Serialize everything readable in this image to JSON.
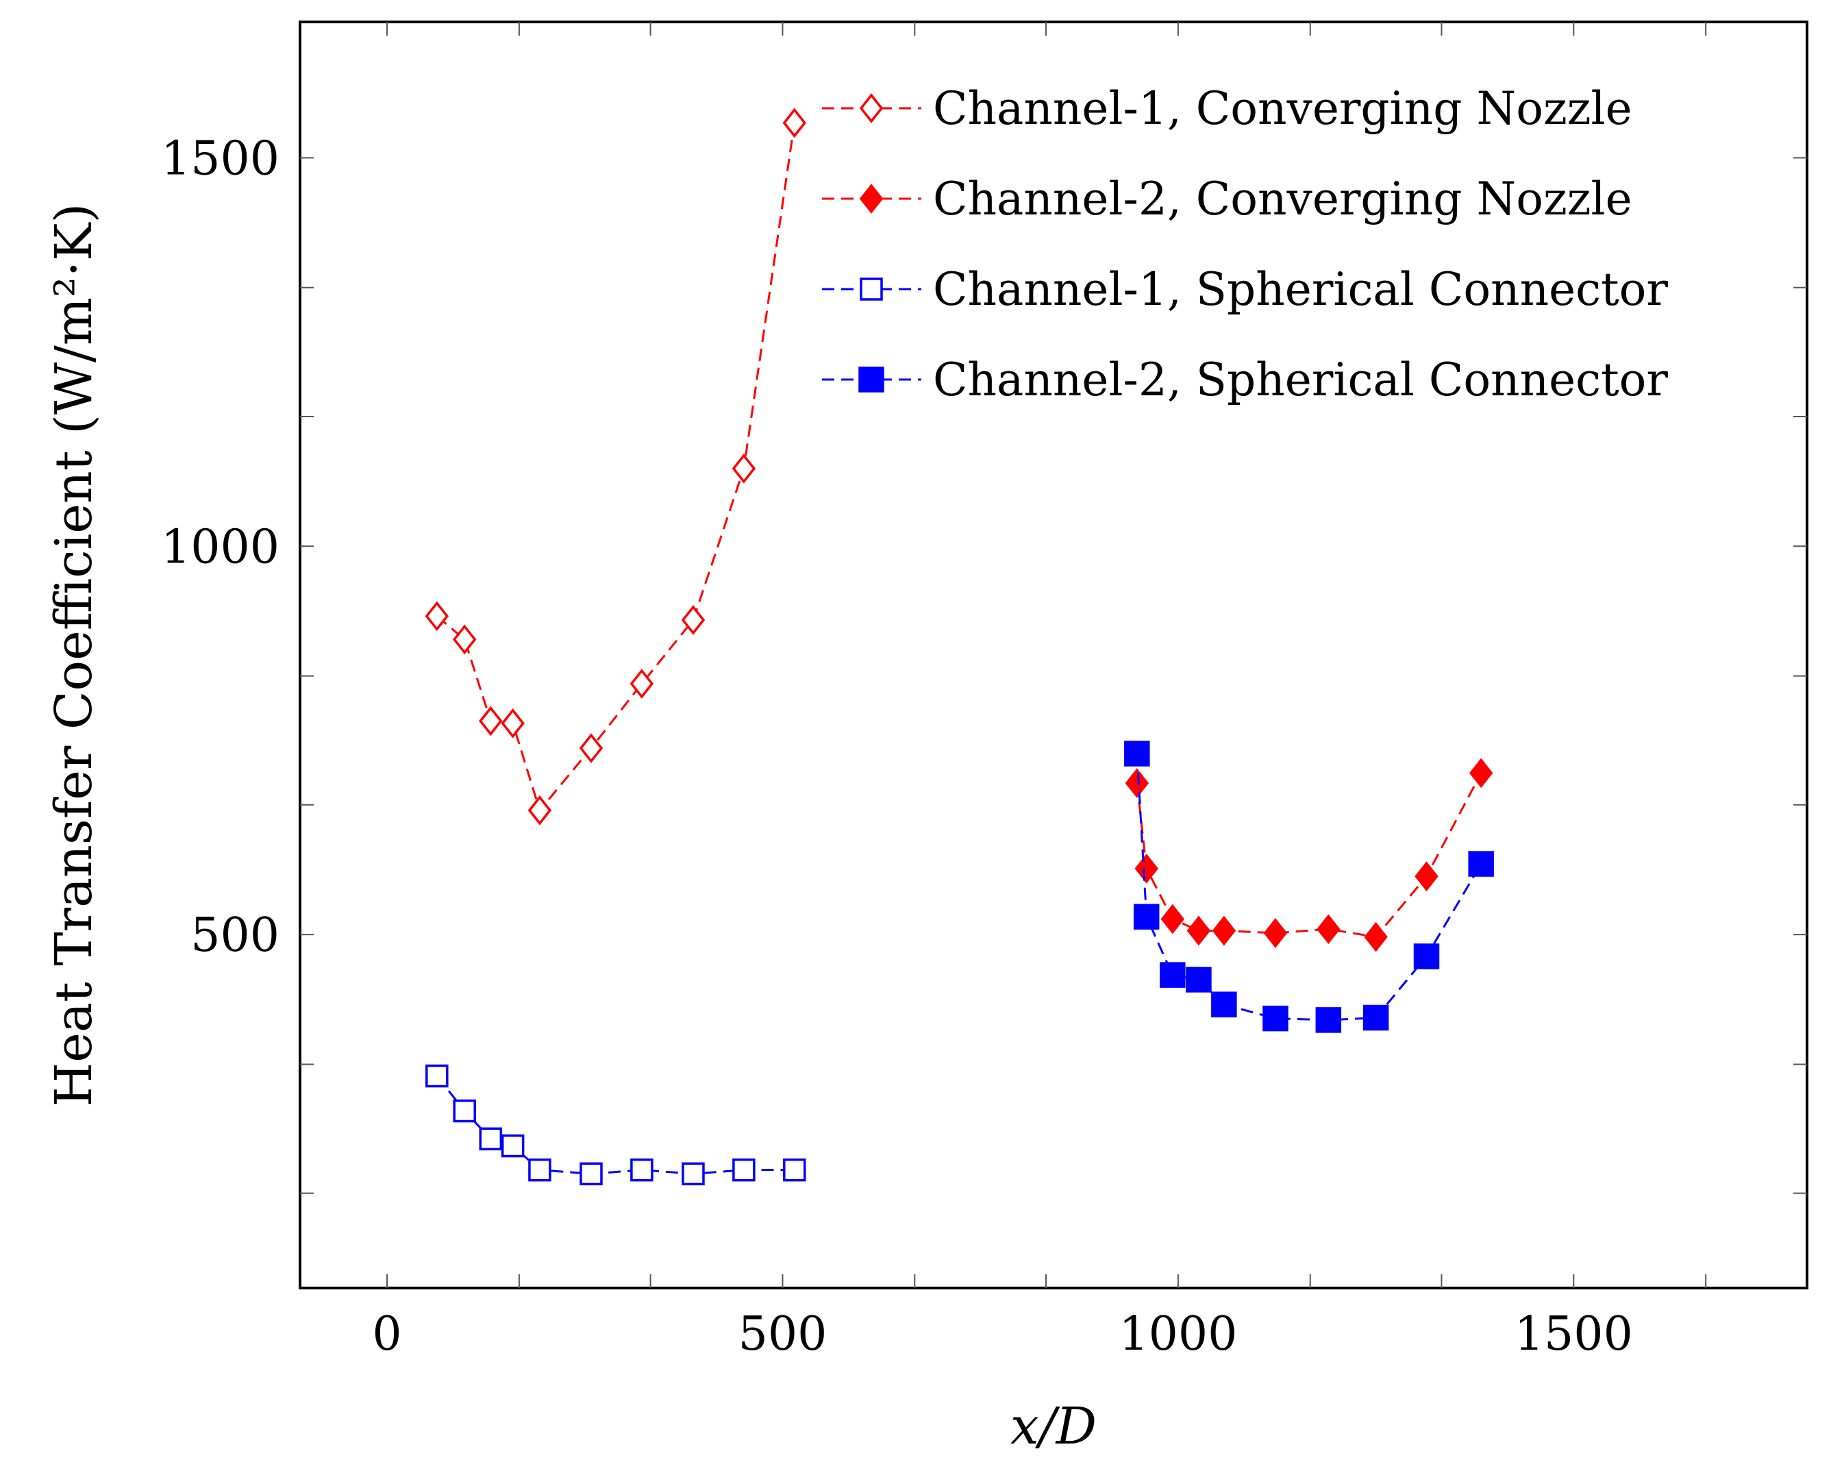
{
  "chart_data": {
    "type": "line",
    "xlabel": "x/D",
    "ylabel": "Heat Transfer Coefficient (W/m²·K)",
    "xlim": [
      -110,
      1795
    ],
    "ylim": [
      45,
      1675
    ],
    "x_ticks": [
      0,
      500,
      1000,
      1500
    ],
    "x_tick_labels": [
      "0",
      "500",
      "1000",
      "1500"
    ],
    "x_minor_ticks": [
      0,
      167,
      333,
      500,
      667,
      833,
      1000,
      1167,
      1333,
      1500,
      1667
    ],
    "y_ticks": [
      500,
      1000,
      1500
    ],
    "y_tick_labels": [
      "500",
      "1000",
      "1500"
    ],
    "y_minor_ticks": [
      167,
      333,
      500,
      667,
      833,
      1000,
      1167,
      1333,
      1500
    ],
    "legend_position": "top-right",
    "series": [
      {
        "name": "Channel-1, Converging Nozzle",
        "color": "#ff0000",
        "marker": "diamond-open",
        "x": [
          63,
          98,
          131,
          159,
          193,
          258,
          322,
          387,
          451,
          515
        ],
        "y": [
          910,
          880,
          775,
          772,
          660,
          740,
          823,
          905,
          1100,
          1545
        ]
      },
      {
        "name": "Channel-2, Converging Nozzle",
        "color": "#ff0000",
        "marker": "diamond-filled",
        "x": [
          948,
          960,
          993,
          1026,
          1058,
          1123,
          1190,
          1250,
          1314,
          1383
        ],
        "y": [
          695,
          585,
          520,
          505,
          505,
          502,
          507,
          497,
          575,
          708
        ]
      },
      {
        "name": "Channel-1, Spherical Connector",
        "color": "#0000ff",
        "marker": "square-open",
        "x": [
          63,
          98,
          131,
          159,
          193,
          258,
          322,
          387,
          451,
          515
        ],
        "y": [
          318,
          273,
          237,
          228,
          197,
          192,
          197,
          192,
          197,
          197
        ]
      },
      {
        "name": "Channel-2, Spherical Connector",
        "color": "#0000ff",
        "marker": "square-filled",
        "x": [
          948,
          960,
          993,
          1026,
          1058,
          1123,
          1190,
          1250,
          1314,
          1383
        ],
        "y": [
          733,
          523,
          448,
          442,
          410,
          392,
          390,
          393,
          472,
          591
        ]
      }
    ]
  }
}
